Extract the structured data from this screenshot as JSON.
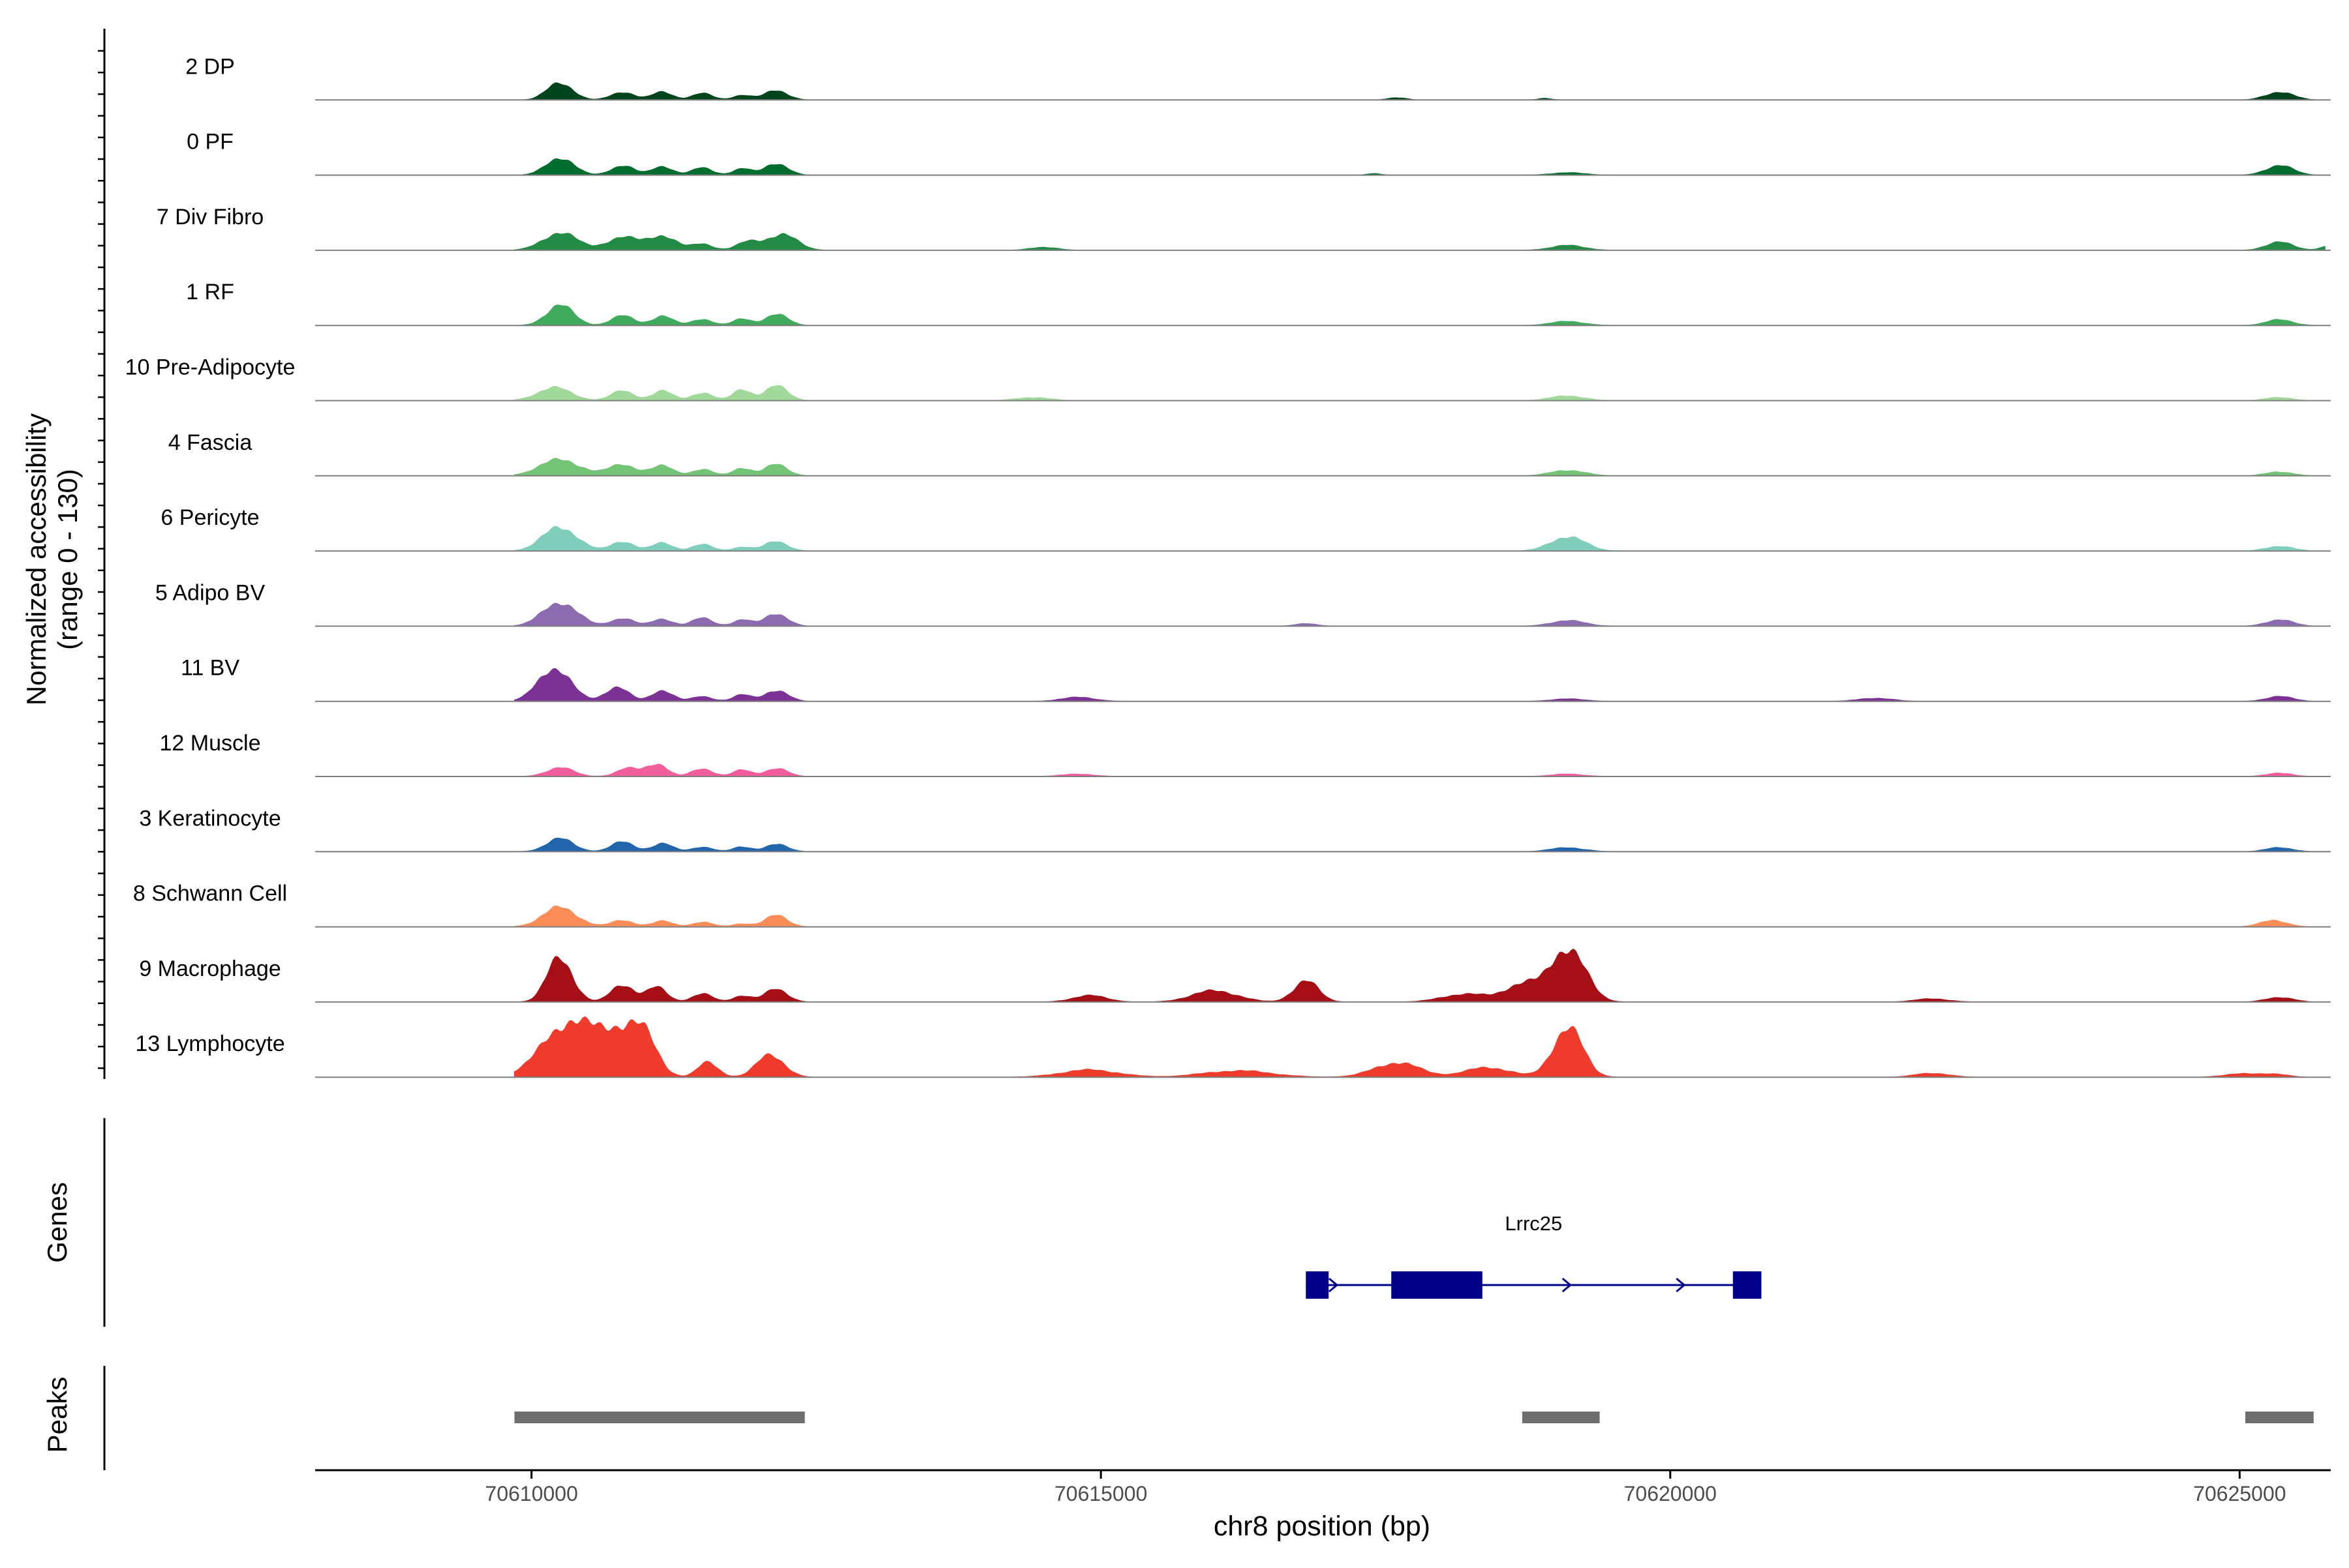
{
  "chart_data": {
    "type": "area",
    "title": "",
    "xlabel": "chr8 position (bp)",
    "ylabel": "Normalized accessibility",
    "ylabel_range": "(range 0 - 130)",
    "xlim": [
      70608100,
      70625800
    ],
    "ylim": [
      0,
      130
    ],
    "x_ticks": [
      70610000,
      70615000,
      70620000,
      70625000
    ],
    "x_tick_labels": [
      "70610000",
      "70615000",
      "70620000",
      "70625000"
    ],
    "tracks": [
      {
        "name": "2 DP",
        "color": "#00441b",
        "peaks": [
          [
            70610250,
            22,
            110
          ],
          [
            70610800,
            10,
            100
          ],
          [
            70611150,
            10,
            90
          ],
          [
            70611500,
            8,
            90
          ],
          [
            70611850,
            6,
            80
          ],
          [
            70612150,
            12,
            100
          ],
          [
            70617600,
            3,
            80
          ],
          [
            70618900,
            2,
            60
          ],
          [
            70625350,
            10,
            120
          ]
        ]
      },
      {
        "name": "0 PF",
        "color": "#006d2c",
        "peaks": [
          [
            70610250,
            22,
            120
          ],
          [
            70610800,
            12,
            100
          ],
          [
            70611150,
            11,
            90
          ],
          [
            70611500,
            9,
            90
          ],
          [
            70611850,
            8,
            80
          ],
          [
            70612150,
            15,
            100
          ],
          [
            70617400,
            2,
            60
          ],
          [
            70619100,
            3,
            150
          ],
          [
            70625350,
            12,
            120
          ]
        ]
      },
      {
        "name": "7 Div Fibro",
        "color": "#238b45",
        "peaks": [
          [
            70610250,
            22,
            150
          ],
          [
            70610800,
            16,
            140
          ],
          [
            70611150,
            18,
            120
          ],
          [
            70611500,
            8,
            90
          ],
          [
            70611900,
            10,
            100
          ],
          [
            70612200,
            20,
            130
          ],
          [
            70614500,
            4,
            120
          ],
          [
            70619100,
            6,
            150
          ],
          [
            70625350,
            10,
            120
          ],
          [
            70625800,
            6,
            80
          ]
        ]
      },
      {
        "name": "1 RF",
        "color": "#41ab5d",
        "peaks": [
          [
            70610250,
            25,
            120
          ],
          [
            70610800,
            12,
            100
          ],
          [
            70611150,
            12,
            90
          ],
          [
            70611500,
            8,
            90
          ],
          [
            70611850,
            8,
            80
          ],
          [
            70612150,
            14,
            100
          ],
          [
            70619100,
            5,
            150
          ],
          [
            70625350,
            7,
            120
          ]
        ]
      },
      {
        "name": "10 Pre-Adipocyte",
        "color": "#a1d99b",
        "peaks": [
          [
            70610200,
            16,
            150
          ],
          [
            70610800,
            12,
            100
          ],
          [
            70611150,
            12,
            90
          ],
          [
            70611500,
            10,
            90
          ],
          [
            70611850,
            14,
            80
          ],
          [
            70612150,
            18,
            100
          ],
          [
            70614400,
            4,
            150
          ],
          [
            70619100,
            6,
            150
          ],
          [
            70625350,
            4,
            120
          ]
        ]
      },
      {
        "name": "4 Fascia",
        "color": "#74c476",
        "peaks": [
          [
            70610250,
            20,
            180
          ],
          [
            70610800,
            14,
            120
          ],
          [
            70611150,
            12,
            100
          ],
          [
            70611500,
            8,
            90
          ],
          [
            70611850,
            10,
            80
          ],
          [
            70612150,
            14,
            100
          ],
          [
            70619100,
            7,
            150
          ],
          [
            70625350,
            5,
            120
          ]
        ]
      },
      {
        "name": "6 Pericyte",
        "color": "#7fcdbb",
        "peaks": [
          [
            70610250,
            30,
            150
          ],
          [
            70610800,
            12,
            100
          ],
          [
            70611150,
            10,
            90
          ],
          [
            70611500,
            8,
            90
          ],
          [
            70611850,
            5,
            80
          ],
          [
            70612150,
            12,
            100
          ],
          [
            70619100,
            18,
            150
          ],
          [
            70625350,
            6,
            120
          ]
        ]
      },
      {
        "name": "5 Adipo BV",
        "color": "#8c6bb1",
        "peaks": [
          [
            70610250,
            30,
            150
          ],
          [
            70610800,
            10,
            100
          ],
          [
            70611150,
            9,
            90
          ],
          [
            70611500,
            10,
            90
          ],
          [
            70611850,
            8,
            80
          ],
          [
            70612150,
            16,
            100
          ],
          [
            70616800,
            3,
            100
          ],
          [
            70619100,
            7,
            150
          ],
          [
            70625350,
            8,
            120
          ]
        ]
      },
      {
        "name": "11 BV",
        "color": "#7b3294",
        "peaks": [
          [
            70610200,
            42,
            140
          ],
          [
            70610750,
            18,
            100
          ],
          [
            70611150,
            14,
            90
          ],
          [
            70611500,
            6,
            90
          ],
          [
            70611850,
            8,
            80
          ],
          [
            70612150,
            14,
            100
          ],
          [
            70614800,
            5,
            150
          ],
          [
            70619100,
            3,
            150
          ],
          [
            70621800,
            4,
            150
          ],
          [
            70625350,
            6,
            120
          ]
        ]
      },
      {
        "name": "12 Muscle",
        "color": "#f25d9c",
        "peaks": [
          [
            70610250,
            11,
            120
          ],
          [
            70610850,
            10,
            100
          ],
          [
            70611100,
            16,
            90
          ],
          [
            70611500,
            10,
            90
          ],
          [
            70611850,
            8,
            80
          ],
          [
            70612150,
            10,
            100
          ],
          [
            70614800,
            3,
            150
          ],
          [
            70619100,
            3,
            150
          ],
          [
            70625350,
            4,
            120
          ]
        ]
      },
      {
        "name": "3 Keratinocyte",
        "color": "#2166ac",
        "peaks": [
          [
            70610250,
            16,
            120
          ],
          [
            70610800,
            12,
            100
          ],
          [
            70611150,
            10,
            90
          ],
          [
            70611500,
            6,
            90
          ],
          [
            70611850,
            6,
            80
          ],
          [
            70612150,
            9,
            100
          ],
          [
            70619100,
            5,
            150
          ],
          [
            70625350,
            5,
            120
          ]
        ]
      },
      {
        "name": "8 Schwann Cell",
        "color": "#fc8d59",
        "peaks": [
          [
            70610250,
            24,
            150
          ],
          [
            70610800,
            8,
            100
          ],
          [
            70611150,
            7,
            90
          ],
          [
            70611500,
            6,
            90
          ],
          [
            70611850,
            4,
            80
          ],
          [
            70612150,
            14,
            100
          ],
          [
            70625300,
            8,
            120
          ]
        ]
      },
      {
        "name": "9 Macrophage",
        "color": "#a50f15",
        "peaks": [
          [
            70610250,
            56,
            110
          ],
          [
            70610800,
            22,
            100
          ],
          [
            70611100,
            18,
            90
          ],
          [
            70611500,
            10,
            90
          ],
          [
            70611850,
            8,
            80
          ],
          [
            70612150,
            16,
            100
          ],
          [
            70614900,
            8,
            150
          ],
          [
            70616000,
            14,
            200
          ],
          [
            70616800,
            26,
            110
          ],
          [
            70618200,
            10,
            200
          ],
          [
            70618700,
            22,
            150
          ],
          [
            70619100,
            68,
            150
          ],
          [
            70622300,
            4,
            150
          ],
          [
            70625350,
            6,
            120
          ]
        ]
      },
      {
        "name": "13 Lymphocyte",
        "color": "#ef3b2c",
        "peaks": [
          [
            70610350,
            70,
            240
          ],
          [
            70610800,
            46,
            160
          ],
          [
            70611000,
            36,
            120
          ],
          [
            70611550,
            18,
            90
          ],
          [
            70612100,
            28,
            120
          ],
          [
            70614900,
            9,
            250
          ],
          [
            70616200,
            8,
            300
          ],
          [
            70617600,
            18,
            200
          ],
          [
            70618400,
            12,
            200
          ],
          [
            70619100,
            62,
            130
          ],
          [
            70622300,
            5,
            150
          ],
          [
            70625000,
            4,
            150
          ],
          [
            70625300,
            4,
            120
          ]
        ]
      }
    ],
    "genes": [
      {
        "name": "Lrrc25",
        "start": 70616800,
        "end": 70620800,
        "strand": "+",
        "exons": [
          [
            70616800,
            70617000
          ],
          [
            70617550,
            70618350
          ],
          [
            70620550,
            70620800
          ]
        ],
        "color": "#00008b"
      }
    ],
    "gene_track_label": "Genes",
    "peak_track_label": "Peaks",
    "peaks": [
      [
        70609850,
        70612400
      ],
      [
        70618700,
        70619380
      ],
      [
        70625050,
        70625650
      ]
    ],
    "peak_color": "#6e6e6e"
  }
}
